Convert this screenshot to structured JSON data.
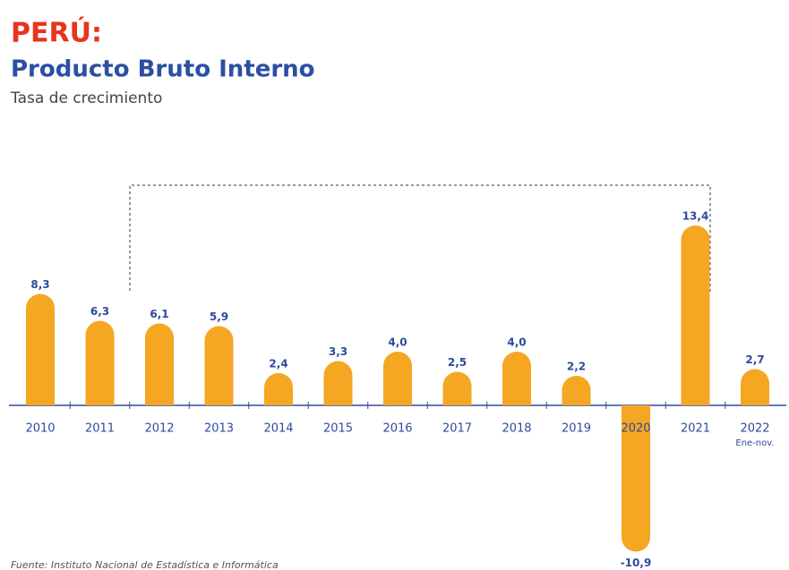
{
  "chart_data": {
    "type": "bar",
    "title": "PERÚ:",
    "subtitle": "Producto Bruto Interno",
    "description": "Tasa de crecimiento",
    "categories": [
      "2010",
      "2011",
      "2012",
      "2013",
      "2014",
      "2015",
      "2016",
      "2017",
      "2018",
      "2019",
      "2020",
      "2021",
      "2022"
    ],
    "values": [
      8.3,
      6.3,
      6.1,
      5.9,
      2.4,
      3.3,
      4.0,
      2.5,
      4.0,
      2.2,
      -10.9,
      13.4,
      2.7
    ],
    "value_labels": [
      "8,3",
      "6,3",
      "6,1",
      "5,9",
      "2,4",
      "3,3",
      "4,0",
      "2,5",
      "4,0",
      "2,2",
      "-10,9",
      "13,4",
      "2,7"
    ],
    "annotations": [
      "Ene-nov."
    ],
    "color": "#f5a623",
    "ylim": [
      -11.5,
      14
    ],
    "source": "Fuente: Instituto Nacional de Estadística e Informática"
  }
}
